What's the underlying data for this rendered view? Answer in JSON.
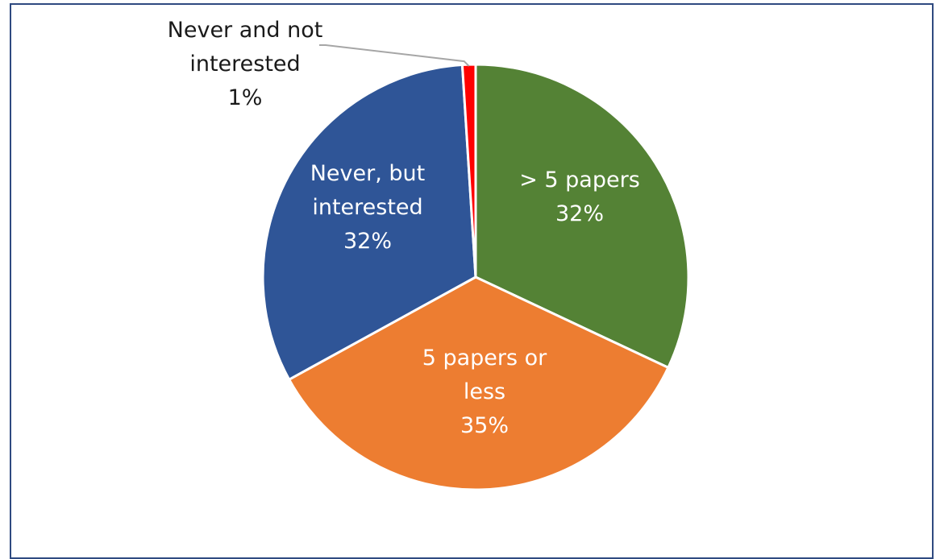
{
  "chart_data": {
    "type": "pie",
    "title": "",
    "slices": [
      {
        "label_lines": [
          "> 5 papers"
        ],
        "percent_label": "32%",
        "value": 32,
        "color": "#548235",
        "label_color": "#ffffff"
      },
      {
        "label_lines": [
          "5 papers or",
          "less"
        ],
        "percent_label": "35%",
        "value": 35,
        "color": "#ed7d31",
        "label_color": "#ffffff"
      },
      {
        "label_lines": [
          "Never, but",
          "interested"
        ],
        "percent_label": "32%",
        "value": 32,
        "color": "#2f5597",
        "label_color": "#ffffff"
      },
      {
        "label_lines": [
          "Never and not",
          "interested"
        ],
        "percent_label": "1%",
        "value": 1,
        "color": "#ff0000",
        "label_color": "#1a1a1a"
      }
    ],
    "legend": "none",
    "colors": {
      "frame_border": "#2f4a80",
      "slice_border": "#ffffff",
      "leader_line": "#a6a6a6"
    }
  }
}
